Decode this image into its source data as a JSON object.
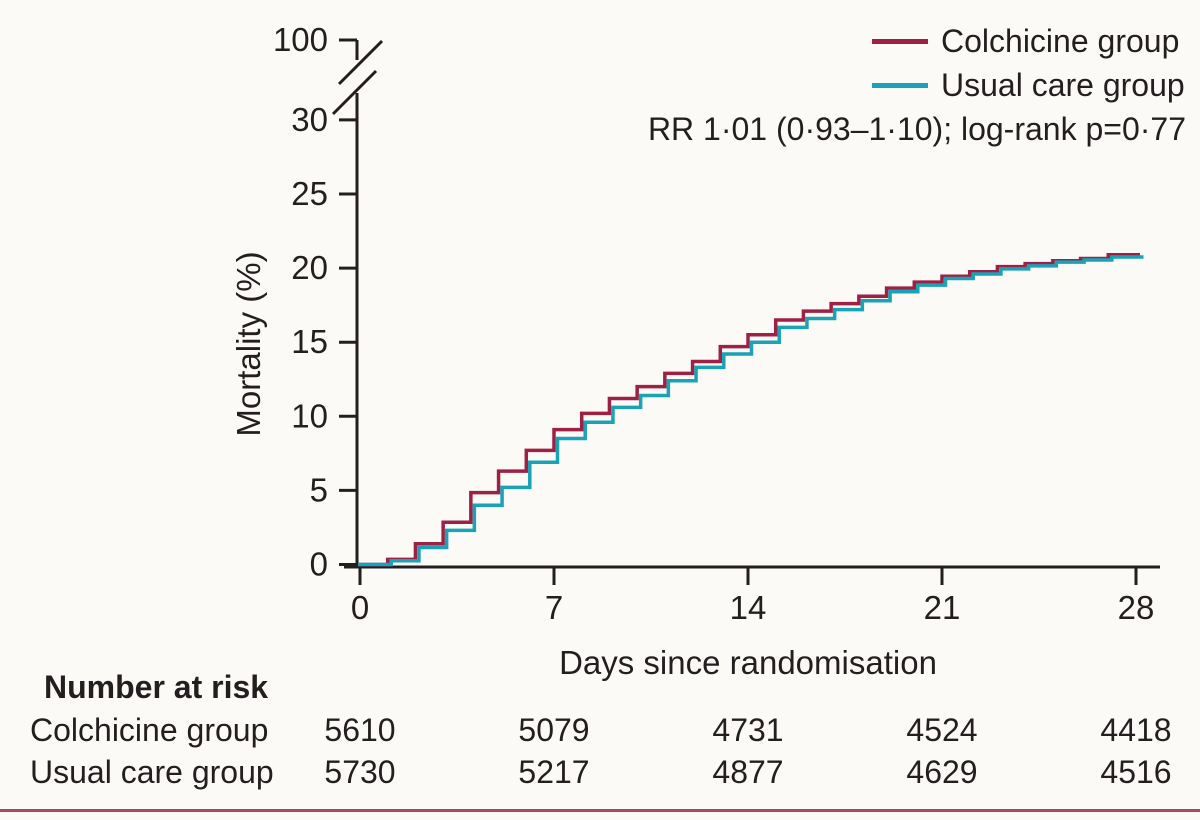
{
  "figure": {
    "background": "#fcfaf7",
    "text_color": "#231f20",
    "bottom_rule_color": "#a54a6b"
  },
  "chart_data": {
    "type": "line",
    "subtype": "kaplan-meier-step",
    "title": "",
    "xlabel": "Days since randomisation",
    "ylabel": "Mortality (%)",
    "annotation": "RR 1·01 (0·93–1·10); log-rank p=0·77",
    "xlim": [
      0,
      28
    ],
    "ylim_display": [
      0,
      32
    ],
    "y_axis_break": {
      "present": true,
      "between": [
        30,
        100
      ]
    },
    "x_ticks": [
      "0",
      "7",
      "14",
      "21",
      "28"
    ],
    "x_tick_values": [
      0,
      7,
      14,
      21,
      28
    ],
    "y_ticks": [
      "0",
      "5",
      "10",
      "15",
      "20",
      "25",
      "30",
      "100"
    ],
    "y_tick_values": [
      0,
      5,
      10,
      15,
      20,
      25,
      30,
      100
    ],
    "grid": false,
    "legend_position": "top-right",
    "x_days": [
      0,
      1,
      2,
      3,
      4,
      5,
      6,
      7,
      8,
      9,
      10,
      11,
      12,
      13,
      14,
      15,
      16,
      17,
      18,
      19,
      20,
      21,
      22,
      23,
      24,
      25,
      26,
      27,
      28
    ],
    "series": [
      {
        "name": "Colchicine group",
        "color": "#9e2044",
        "values": [
          0,
          0.35,
          1.4,
          2.85,
          4.85,
          6.3,
          7.7,
          9.1,
          10.2,
          11.2,
          12.0,
          12.9,
          13.7,
          14.7,
          15.5,
          16.5,
          17.1,
          17.6,
          18.1,
          18.65,
          19.05,
          19.45,
          19.75,
          20.1,
          20.3,
          20.5,
          20.65,
          20.9,
          20.9
        ]
      },
      {
        "name": "Usual care group",
        "color": "#1aa2b6",
        "values": [
          0,
          0.25,
          1.15,
          2.3,
          4.0,
          5.2,
          6.9,
          8.5,
          9.6,
          10.6,
          11.4,
          12.4,
          13.3,
          14.2,
          15.0,
          16.0,
          16.6,
          17.2,
          17.8,
          18.4,
          18.85,
          19.3,
          19.6,
          19.95,
          20.15,
          20.4,
          20.55,
          20.75,
          20.75
        ]
      }
    ],
    "number_at_risk": {
      "header": "Number at risk",
      "rows": [
        {
          "label": "Colchicine group",
          "values": [
            "5610",
            "5079",
            "4731",
            "4524",
            "4418"
          ]
        },
        {
          "label": "Usual care group",
          "values": [
            "5730",
            "5217",
            "4877",
            "4629",
            "4516"
          ]
        }
      ]
    }
  }
}
